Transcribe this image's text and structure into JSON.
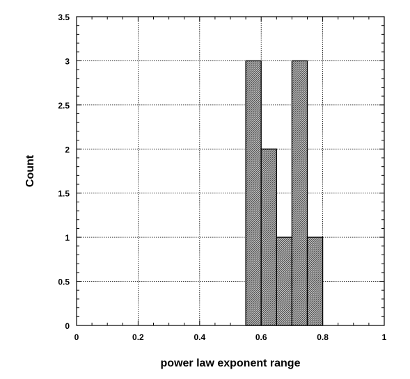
{
  "chart_data": {
    "type": "bar",
    "title": "",
    "xlabel": "power law exponent range",
    "ylabel": "Count",
    "xlim": [
      0,
      1
    ],
    "ylim": [
      0,
      3.5
    ],
    "x_ticks": [
      "0",
      "0.2",
      "0.4",
      "0.6",
      "0.8",
      "1"
    ],
    "y_ticks": [
      "0",
      "0.5",
      "1",
      "1.5",
      "2",
      "2.5",
      "3",
      "3.5"
    ],
    "grid": true,
    "bins": [
      {
        "start": 0.55,
        "end": 0.6,
        "value": 3
      },
      {
        "start": 0.6,
        "end": 0.65,
        "value": 2
      },
      {
        "start": 0.65,
        "end": 0.7,
        "value": 1
      },
      {
        "start": 0.7,
        "end": 0.75,
        "value": 3
      },
      {
        "start": 0.75,
        "end": 0.8,
        "value": 1
      }
    ],
    "bar_color": "#9a9a9a",
    "bar_edge_color": "#000000"
  }
}
